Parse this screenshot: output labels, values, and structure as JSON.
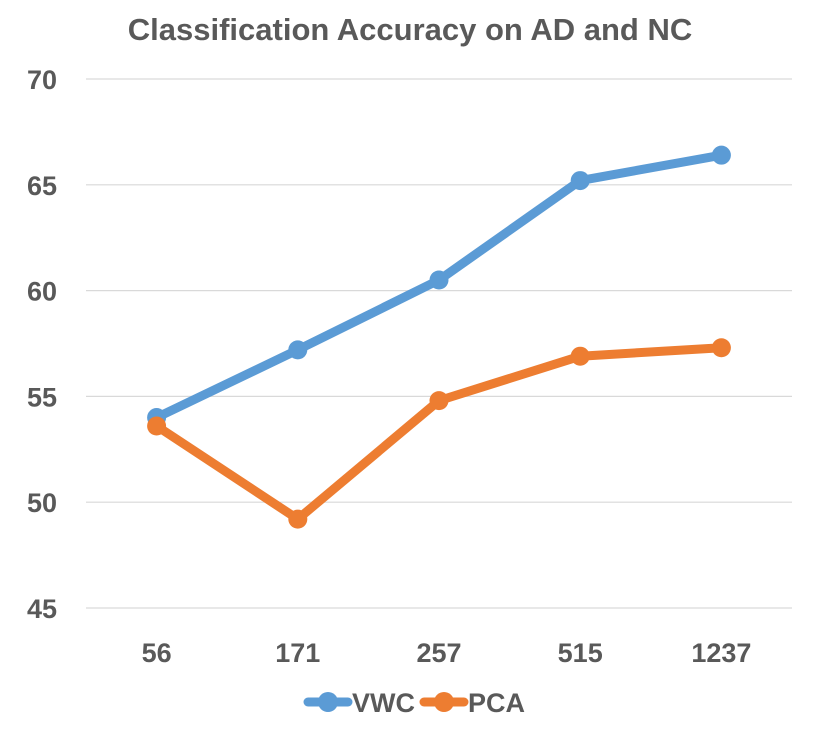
{
  "chart_data": {
    "type": "line",
    "title": "Classification Accuracy on AD and NC",
    "xlabel": "",
    "ylabel": "",
    "categories": [
      "56",
      "171",
      "257",
      "515",
      "1237"
    ],
    "series": [
      {
        "name": "VWC",
        "color": "#5B9BD5",
        "values": [
          54.0,
          57.2,
          60.5,
          65.2,
          66.4
        ]
      },
      {
        "name": "PCA",
        "color": "#ED7D31",
        "values": [
          53.6,
          49.2,
          54.8,
          56.9,
          57.3
        ]
      }
    ],
    "ylim": [
      45,
      70
    ],
    "yticks": [
      "45",
      "50",
      "55",
      "60",
      "65",
      "70"
    ],
    "grid": true,
    "legend": "bottom"
  }
}
